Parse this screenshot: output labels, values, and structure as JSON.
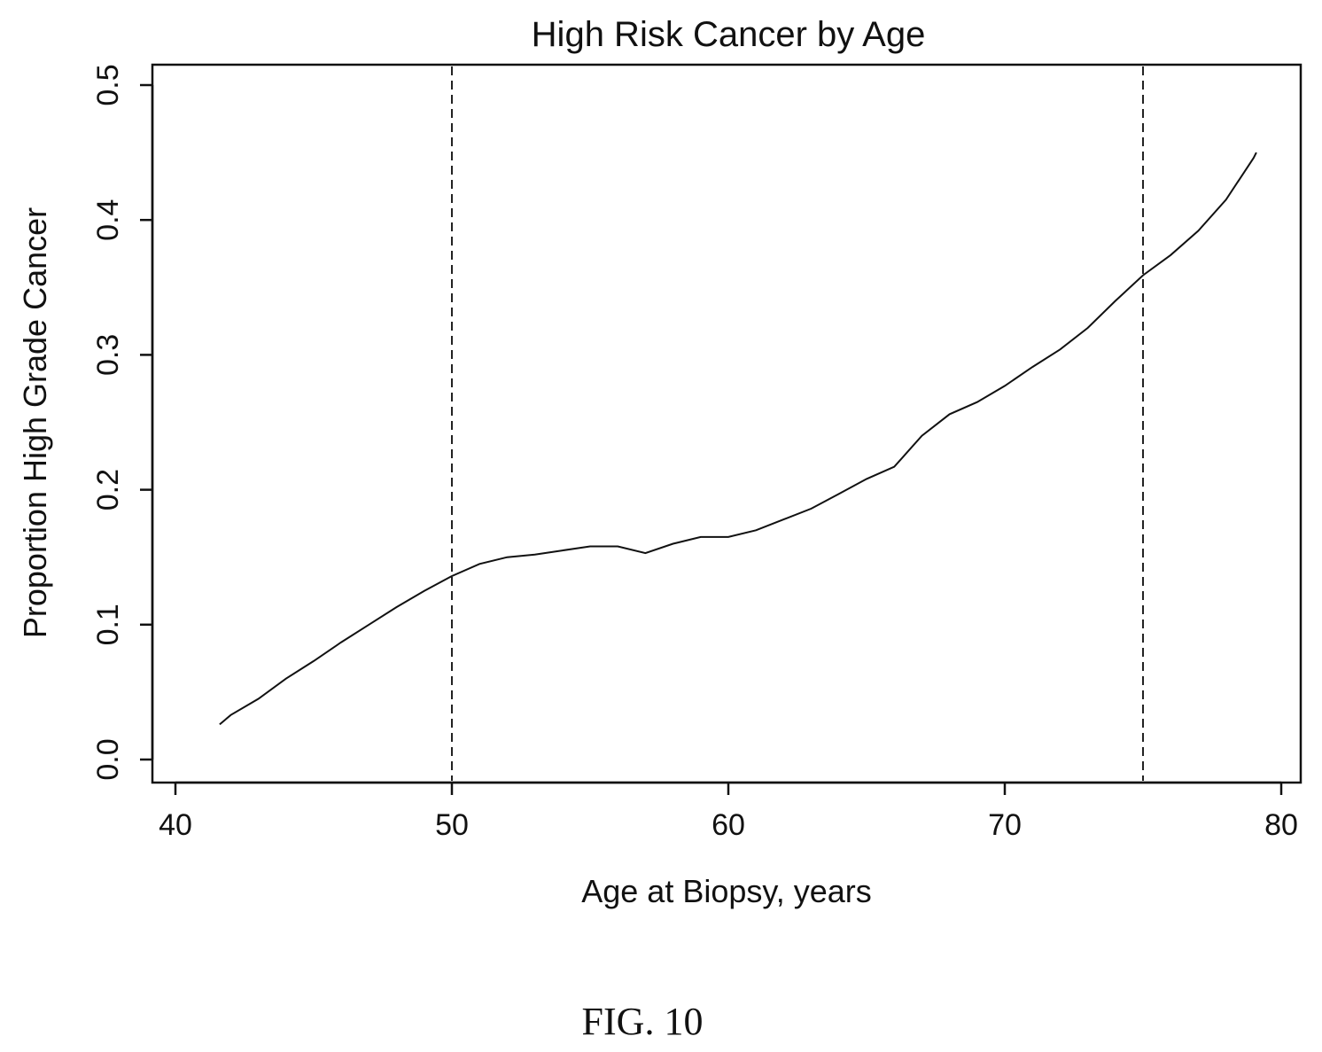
{
  "chart_data": {
    "type": "line",
    "title": "High Risk Cancer by Age",
    "xlabel": "Age at Biopsy, years",
    "ylabel": "Proportion High Grade Cancer",
    "xlim": [
      40,
      80
    ],
    "ylim": [
      0.0,
      0.5
    ],
    "x_ticks": [
      "40",
      "50",
      "60",
      "70",
      "80"
    ],
    "y_ticks": [
      "0.0",
      "0.1",
      "0.2",
      "0.3",
      "0.4",
      "0.5"
    ],
    "x_tick_values": [
      40,
      50,
      60,
      70,
      80
    ],
    "y_tick_values": [
      0.0,
      0.1,
      0.2,
      0.3,
      0.4,
      0.5
    ],
    "reference_lines": [
      {
        "axis": "x",
        "value": 50,
        "style": "dashed"
      },
      {
        "axis": "x",
        "value": 75,
        "style": "dashed"
      }
    ],
    "grid": false,
    "legend": "none",
    "series": [
      {
        "x": [
          41.6,
          42,
          43,
          44,
          45,
          46,
          47,
          48,
          49,
          50,
          51,
          52,
          53,
          54,
          55,
          56,
          57,
          58,
          59,
          60,
          61,
          62,
          63,
          64,
          65,
          66,
          67,
          68,
          69,
          70,
          71,
          72,
          73,
          74,
          75,
          76,
          77,
          78,
          79,
          79.1
        ],
        "values": [
          0.026,
          0.033,
          0.045,
          0.06,
          0.073,
          0.087,
          0.1,
          0.113,
          0.125,
          0.136,
          0.145,
          0.15,
          0.152,
          0.155,
          0.158,
          0.158,
          0.153,
          0.16,
          0.165,
          0.165,
          0.17,
          0.178,
          0.186,
          0.197,
          0.208,
          0.217,
          0.24,
          0.256,
          0.265,
          0.277,
          0.291,
          0.304,
          0.32,
          0.34,
          0.359,
          0.374,
          0.392,
          0.415,
          0.446,
          0.45
        ]
      }
    ]
  },
  "caption": "FIG. 10"
}
